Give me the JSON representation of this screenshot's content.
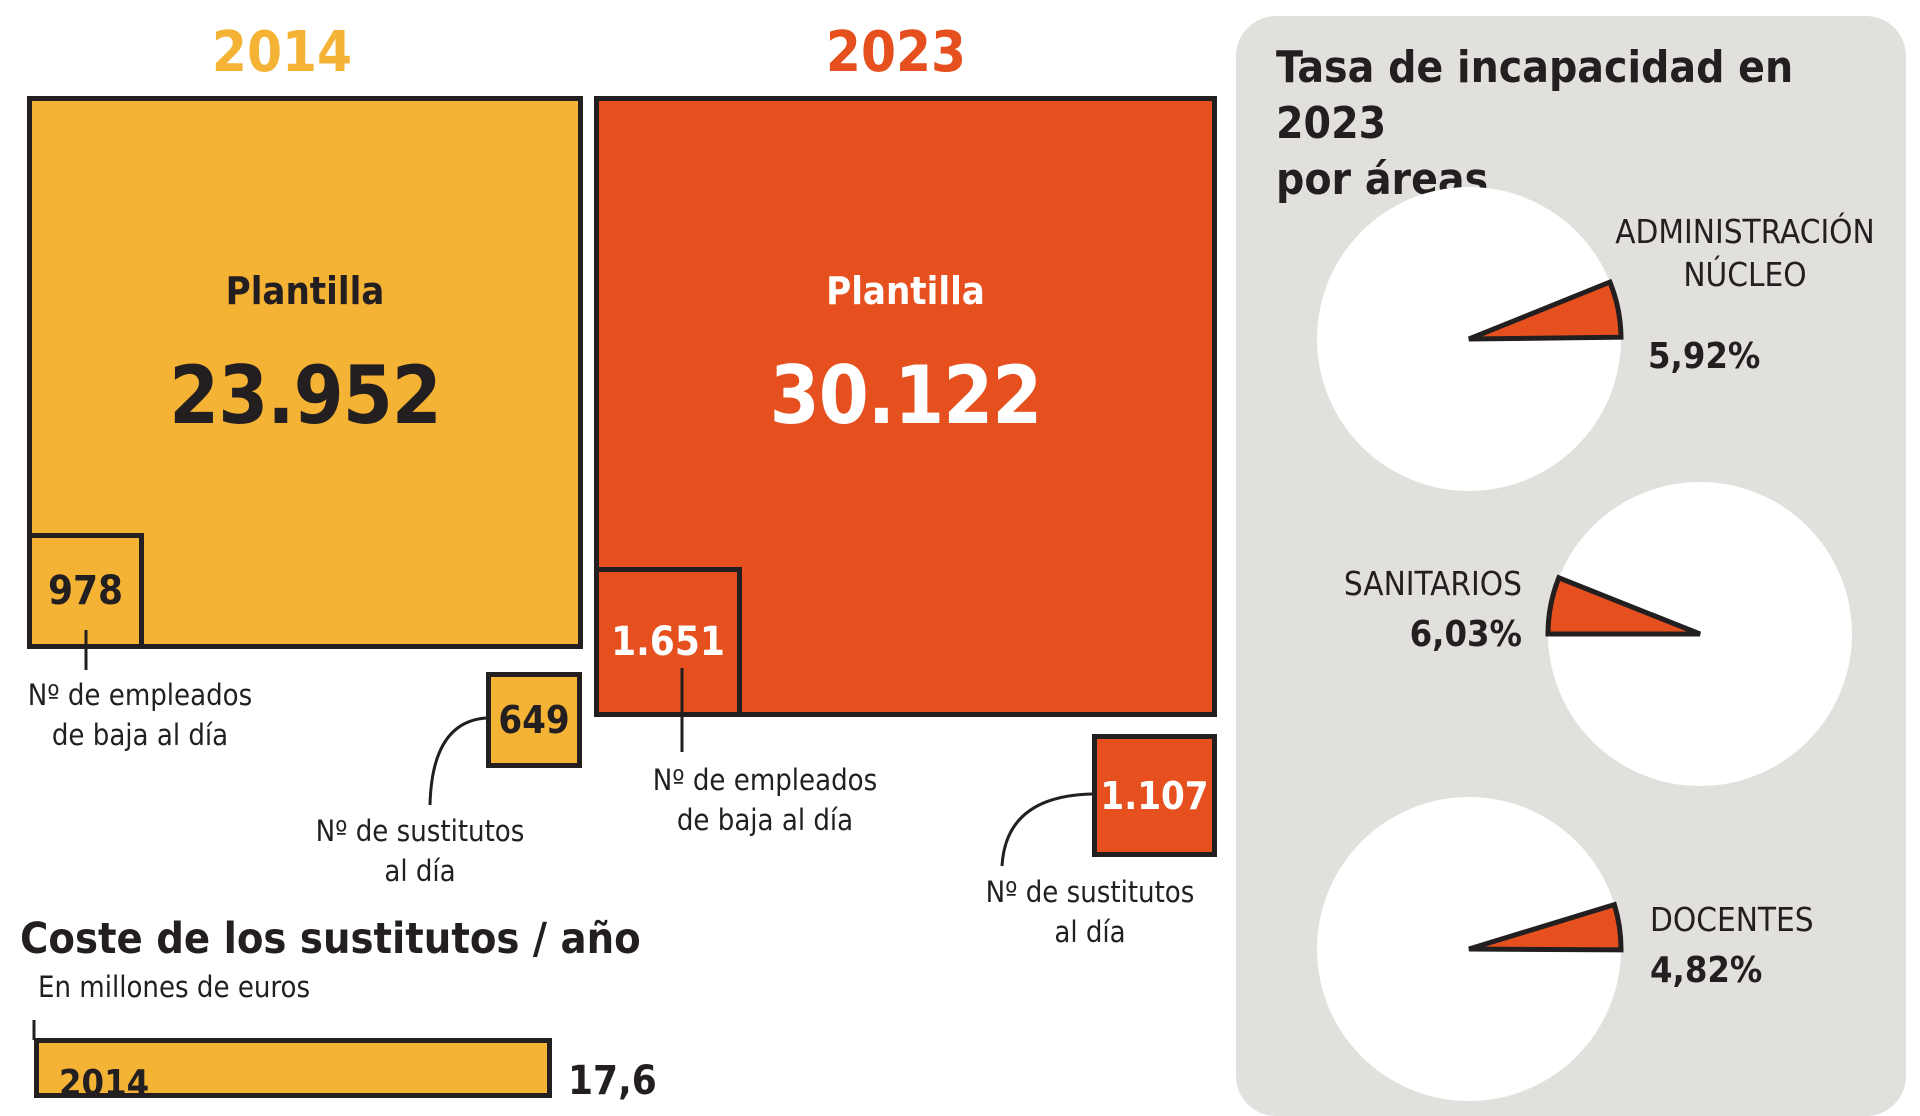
{
  "colors": {
    "y2014": "#f5b335",
    "y2023": "#e6501f",
    "outline": "#231f20",
    "panel_bg": "#e2e0dc"
  },
  "y2014": {
    "year": "2014",
    "plantilla_label": "Plantilla",
    "plantilla_value": "23.952",
    "baja_value": "978",
    "baja_note_1": "Nº de empleados",
    "baja_note_2": "de baja al día",
    "sustitutos_value": "649",
    "sustitutos_note_1": "Nº de sustitutos",
    "sustitutos_note_2": "al día"
  },
  "y2023": {
    "year": "2023",
    "plantilla_label": "Plantilla",
    "plantilla_value": "30.122",
    "baja_value": "1.651",
    "baja_note_1": "Nº de empleados",
    "baja_note_2": "de baja al día",
    "sustitutos_value": "1.107",
    "sustitutos_note_1": "Nº de sustitutos",
    "sustitutos_note_2": "al día"
  },
  "coste": {
    "title": "Coste de los sustitutos / año",
    "subtitle": "En millones de euros",
    "bar_value_partial": "17,6",
    "bar_label_partial": "2014"
  },
  "panel": {
    "title_line1": "Tasa de incapacidad en 2023",
    "title_line2": "por áreas",
    "areas": [
      {
        "label_line1": "ADMINISTRACIÓN",
        "label_line2": "NÚCLEO",
        "value": "5,92%"
      },
      {
        "label_line1": "SANITARIOS",
        "label_line2": "",
        "value": "6,03%"
      },
      {
        "label_line1": "DOCENTES",
        "label_line2": "",
        "value": "4,82%"
      }
    ]
  },
  "chart_data": [
    {
      "type": "bar",
      "categories": [
        "2014",
        "2023"
      ],
      "series": [
        {
          "name": "Plantilla",
          "values": [
            23952,
            30122
          ]
        },
        {
          "name": "Nº de empleados de baja al día",
          "values": [
            978,
            1651
          ]
        },
        {
          "name": "Nº de sustitutos al día",
          "values": [
            649,
            1107
          ]
        }
      ]
    },
    {
      "type": "pie",
      "title": "Tasa de incapacidad en 2023 por áreas",
      "categories": [
        "ADMINISTRACIÓN NÚCLEO",
        "SANITARIOS",
        "DOCENTES"
      ],
      "values": [
        5.92,
        6.03,
        4.82
      ],
      "unit": "%"
    },
    {
      "type": "bar",
      "title": "Coste de los sustitutos / año",
      "subtitle": "En millones de euros",
      "categories": [
        "2014"
      ],
      "values": [
        17.6
      ]
    }
  ]
}
